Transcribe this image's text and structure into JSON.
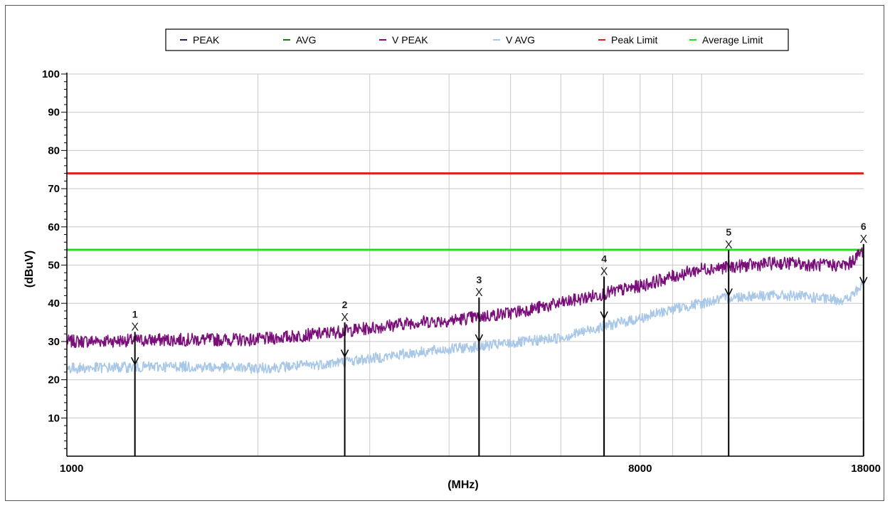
{
  "chart_data": {
    "type": "line",
    "xlabel": "(MHz)",
    "ylabel": "(dBuV)",
    "xscale": "log",
    "xlim": [
      1000,
      18000
    ],
    "ylim": [
      0,
      100
    ],
    "grid": true,
    "legend_position": "top",
    "x_tick_labels": [
      {
        "value": 1000,
        "label": "1000"
      },
      {
        "value": 8000,
        "label": "8000"
      },
      {
        "value": 18000,
        "label": "18000"
      }
    ],
    "x_gridlines": [
      2000,
      3000,
      4000,
      5000,
      6000,
      7000,
      8000,
      9000,
      10000
    ],
    "y_ticks": [
      10,
      20,
      30,
      40,
      50,
      60,
      70,
      80,
      90,
      100
    ],
    "series": [
      {
        "name": "PEAK",
        "color": "#1f1f6b",
        "values": []
      },
      {
        "name": "AVG",
        "color": "#1a7a1a",
        "values": []
      },
      {
        "name": "V PEAK",
        "color": "#7a0f7a",
        "x": [
          1000,
          1500,
          2000,
          2500,
          3000,
          3500,
          4000,
          5000,
          6000,
          7000,
          8000,
          9000,
          10000,
          11000,
          12000,
          13000,
          14000,
          15000,
          16000,
          17000,
          18000
        ],
        "values": [
          30,
          30.5,
          30.5,
          32,
          33.5,
          35,
          35.5,
          37.5,
          40,
          42.5,
          44.5,
          47,
          49,
          49.5,
          50,
          50.5,
          50.5,
          50,
          50,
          50,
          54
        ]
      },
      {
        "name": "V AVG",
        "color": "#a9c8e8",
        "x": [
          1000,
          1500,
          2000,
          2500,
          3000,
          3500,
          4000,
          5000,
          6000,
          7000,
          8000,
          9000,
          10000,
          11000,
          12000,
          13000,
          14000,
          15000,
          16000,
          17000,
          18000
        ],
        "values": [
          23,
          23.5,
          23,
          24,
          25.5,
          27,
          28,
          29.5,
          31,
          34,
          36,
          38.5,
          40,
          41.5,
          42,
          42,
          42,
          41.5,
          41,
          41,
          45
        ]
      },
      {
        "name": "Peak Limit",
        "color": "#e02020",
        "x": [
          1000,
          18000
        ],
        "values": [
          74,
          74
        ]
      },
      {
        "name": "Average Limit",
        "color": "#22dd22",
        "x": [
          1000,
          18000
        ],
        "values": [
          54,
          54
        ]
      }
    ],
    "markers": [
      {
        "label": "1",
        "x": 1280,
        "peak": 34,
        "avg": 24
      },
      {
        "label": "2",
        "x": 2740,
        "peak": 36.5,
        "avg": 26
      },
      {
        "label": "3",
        "x": 4460,
        "peak": 43,
        "avg": 30
      },
      {
        "label": "4",
        "x": 7020,
        "peak": 48.5,
        "avg": 36
      },
      {
        "label": "5",
        "x": 11030,
        "peak": 55.5,
        "avg": 42
      },
      {
        "label": "6",
        "x": 17990,
        "peak": 57,
        "avg": 45
      }
    ]
  }
}
